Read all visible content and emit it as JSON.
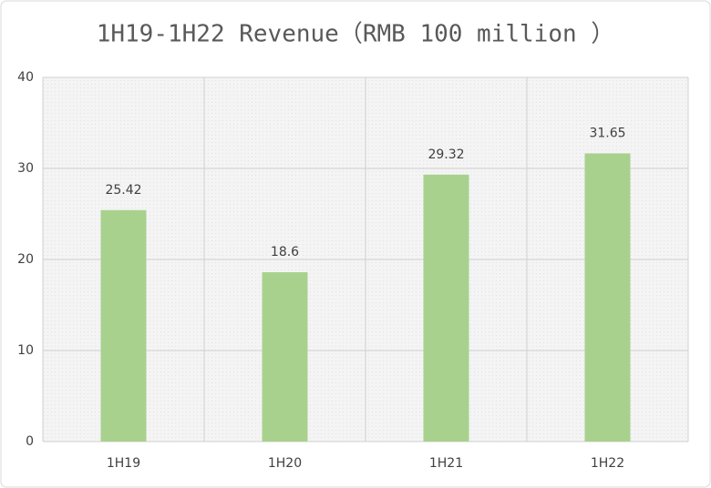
{
  "chart_data": {
    "type": "bar",
    "title": "1H19-1H22 Revenue（RMB 100 million ）",
    "categories": [
      "1H19",
      "1H20",
      "1H21",
      "1H22"
    ],
    "values": [
      25.42,
      18.6,
      29.32,
      31.65
    ],
    "color": "#a9d18e",
    "ylim": [
      0,
      40
    ],
    "yticks": [
      0,
      10,
      20,
      30,
      40
    ],
    "grid": true
  }
}
